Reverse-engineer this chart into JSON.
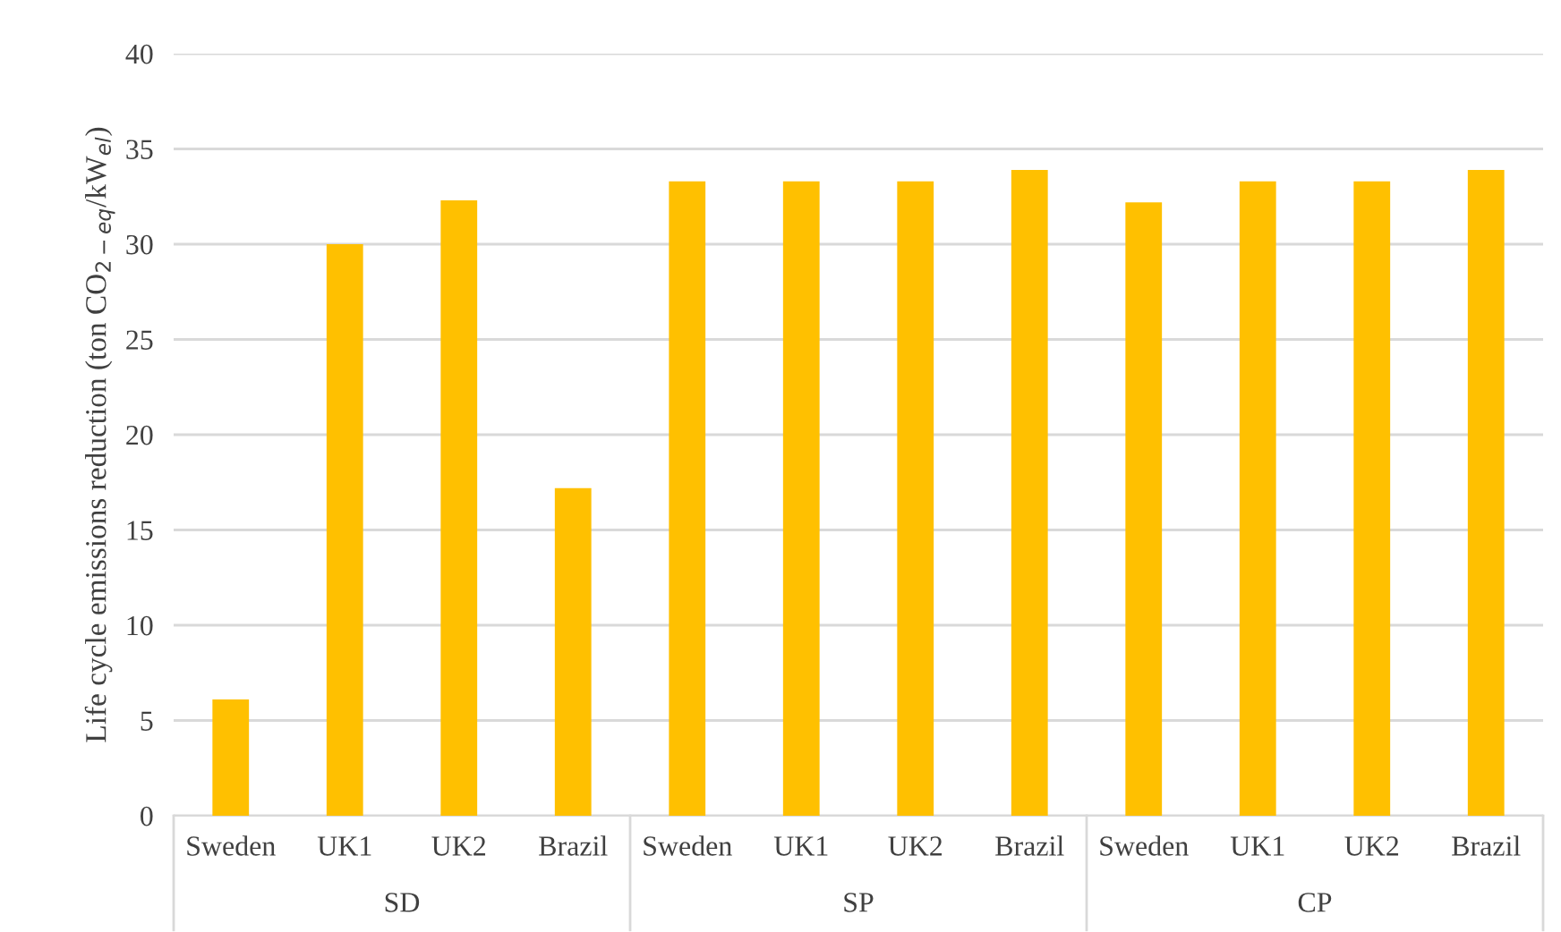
{
  "chart_data": {
    "type": "bar",
    "ylabel": "Life cycle emissions reduction (ton CO$_{2−eq}$/kW$_{el}$)",
    "categories": [
      "Sweden",
      "UK1",
      "UK2",
      "Brazil",
      "Sweden",
      "UK1",
      "UK2",
      "Brazil",
      "Sweden",
      "UK1",
      "UK2",
      "Brazil"
    ],
    "values": [
      6.1,
      30.0,
      32.3,
      17.2,
      33.3,
      33.3,
      33.3,
      33.9,
      32.2,
      33.3,
      33.3,
      33.9
    ],
    "color": "#ffc000",
    "ylim": [
      0,
      40
    ],
    "yticks": [
      0,
      5,
      10,
      15,
      20,
      25,
      30,
      35,
      40
    ],
    "grid": "y",
    "annotations": [
      "SD",
      "SP",
      "CP"
    ]
  }
}
